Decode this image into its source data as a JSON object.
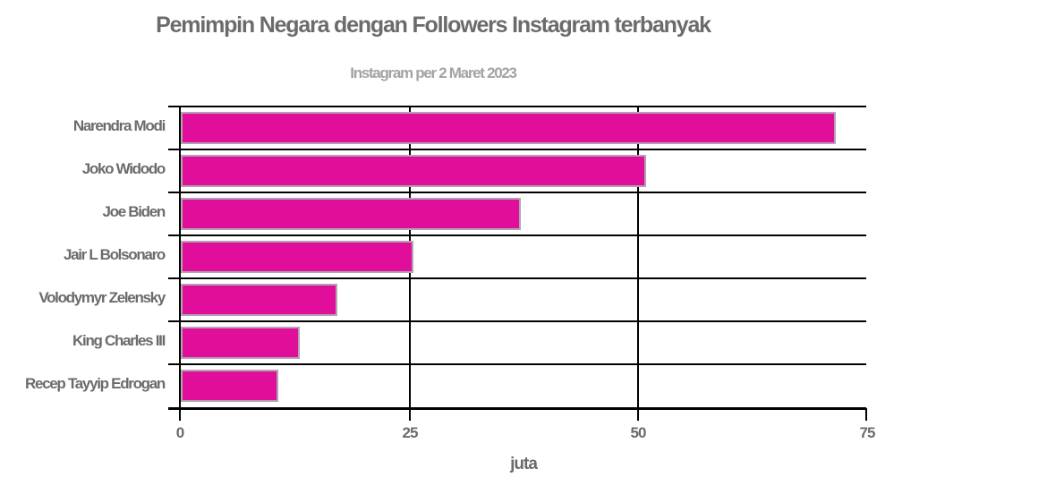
{
  "header": {
    "title": "Pemimpin Negara dengan Followers Instagram terbanyak",
    "subtitle": "Instagram per 2 Maret 2023"
  },
  "colors": {
    "bar_fill": "#e00e9a",
    "bar_border": "#b3a3b3",
    "title_text": "#6b6b6b",
    "subtitle_text": "#a3a3a3",
    "grid": "#000000"
  },
  "chart_data": {
    "type": "bar",
    "orientation": "horizontal",
    "title": "Pemimpin Negara dengan Followers Instagram terbanyak",
    "subtitle": "Instagram per 2 Maret 2023",
    "categories": [
      "Narendra Modi",
      "Joko Widodo",
      "Joe Biden",
      "Jair L Bolsonaro",
      "Volodymyr Zelensky",
      "King Charles III",
      "Recep Tayyip Edrogan"
    ],
    "values": [
      71.5,
      50.8,
      37.1,
      25.4,
      17.1,
      13.0,
      10.6
    ],
    "xlabel": "juta",
    "ylabel": "",
    "xlim": [
      0,
      75
    ],
    "xticks": [
      "0",
      "25",
      "50",
      "75"
    ],
    "grid": true,
    "legend": null
  }
}
